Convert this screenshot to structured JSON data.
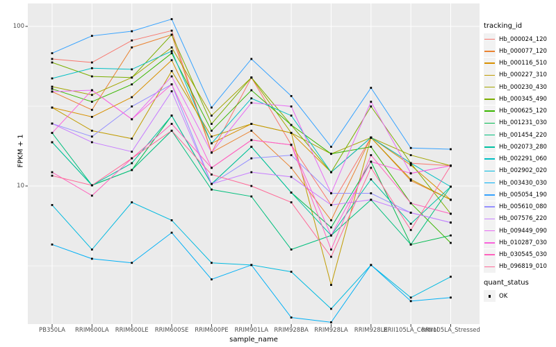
{
  "figure": {
    "background": "#ffffff",
    "panel_background": "#ebebeb",
    "gridline_color": "#ffffff",
    "tick_color": "#333333",
    "axis_text_color": "#4d4d4d"
  },
  "chart_data": {
    "type": "line",
    "title": "",
    "xlabel": "sample_name",
    "ylabel": "FPKM + 1",
    "y_scale": "log10",
    "y_ticks": [
      {
        "label": "100",
        "value": 100
      },
      {
        "label": "10",
        "value": 10
      }
    ],
    "y_minor_gridlines": [
      31.6,
      3.16
    ],
    "ylim": [
      1.36,
      140
    ],
    "grid": "on",
    "legend_position": "right",
    "point_marker": {
      "shape": "square",
      "color": "#000000",
      "size": 2.8
    },
    "categories": [
      "PB350LA",
      "RRIM600LA",
      "RRIM600LE",
      "RRIM600SE",
      "RRIM600PE",
      "RRIM901LA",
      "RRIM928BA",
      "RRIM928LA",
      "RRIM928LE",
      "RRII105LA_Control",
      "RRII105LA_Stressed"
    ],
    "series": [
      {
        "name": "Hb_000024_120",
        "color": "#F8766D",
        "values": [
          62.5,
          59.4,
          81.6,
          94,
          16.2,
          47.8,
          18.1,
          7.6,
          20.1,
          13.9,
          13.4
        ]
      },
      {
        "name": "Hb_000077_120",
        "color": "#EA8331",
        "values": [
          39,
          30,
          73.8,
          88.7,
          16.2,
          22.2,
          13,
          6.1,
          20.1,
          10.8,
          8.2
        ]
      },
      {
        "name": "Hb_000116_510",
        "color": "#D89000",
        "values": [
          31,
          27.1,
          36,
          61.4,
          18.5,
          24.5,
          21.5,
          12.2,
          20.1,
          13.5,
          8.2
        ]
      },
      {
        "name": "Hb_000227_310",
        "color": "#C09B00",
        "values": [
          31,
          22.2,
          19.8,
          52.5,
          20.4,
          24.5,
          21.5,
          2.4,
          20.1,
          11,
          8.2
        ]
      },
      {
        "name": "Hb_000230_430",
        "color": "#A3A500",
        "values": [
          41.9,
          37.2,
          47.8,
          73.8,
          27.6,
          47.8,
          21.5,
          15.9,
          20.1,
          15.6,
          13.4
        ]
      },
      {
        "name": "Hb_000345_490",
        "color": "#7CAE00",
        "values": [
          59.4,
          48.6,
          47.8,
          88.7,
          24.5,
          47.8,
          24.1,
          12.2,
          31.5,
          13.9,
          6.7
        ]
      },
      {
        "name": "Hb_000625_120",
        "color": "#39B600",
        "values": [
          40.6,
          33.7,
          43.3,
          67.9,
          22.2,
          39.8,
          24.1,
          15.9,
          17.6,
          7.8,
          4.4
        ]
      },
      {
        "name": "Hb_001231_030",
        "color": "#00BB4E",
        "values": [
          18.8,
          10.1,
          12.6,
          27.6,
          10.3,
          17.6,
          9.1,
          5.5,
          14.2,
          4.3,
          4.9
        ]
      },
      {
        "name": "Hb_001454_220",
        "color": "#00BF7D",
        "values": [
          21.5,
          10.1,
          12.6,
          22.2,
          9.5,
          8.6,
          4,
          4.9,
          8.2,
          4.3,
          9.9
        ]
      },
      {
        "name": "Hb_002073_280",
        "color": "#00C1A3",
        "values": [
          18.8,
          10.1,
          13.9,
          27.6,
          10.3,
          17.6,
          9.1,
          4.9,
          11,
          5.8,
          9.9
        ]
      },
      {
        "name": "Hb_002291_060",
        "color": "#00BFC4",
        "values": [
          47.2,
          54.7,
          53.8,
          70,
          18.5,
          35.4,
          27.6,
          12.2,
          20.1,
          13.9,
          9.9
        ]
      },
      {
        "name": "Hb_002902_020",
        "color": "#00BAE0",
        "values": [
          7.6,
          4,
          7.9,
          6.1,
          3.3,
          3.2,
          2.9,
          1.7,
          3.2,
          2,
          2.7
        ]
      },
      {
        "name": "Hb_003430_030",
        "color": "#00B0F6",
        "values": [
          4.3,
          3.5,
          3.3,
          5.1,
          2.6,
          3.2,
          1.5,
          1.4,
          3.2,
          1.9,
          2
        ]
      },
      {
        "name": "Hb_005054_190",
        "color": "#35A2FF",
        "values": [
          67.9,
          87.2,
          93.2,
          111,
          31,
          62.5,
          36.6,
          17.6,
          41.2,
          17.3,
          17
        ]
      },
      {
        "name": "Hb_005610_080",
        "color": "#9590FF",
        "values": [
          24.6,
          20.4,
          31.5,
          43.3,
          10.3,
          14.9,
          15.6,
          9,
          9,
          6.8,
          5.9
        ]
      },
      {
        "name": "Hb_007576_220",
        "color": "#C77CFF",
        "values": [
          24.6,
          18.8,
          16.4,
          39.2,
          10.3,
          12.2,
          11.4,
          7.6,
          8.2,
          6.8,
          5.9
        ]
      },
      {
        "name": "Hb_009449_090",
        "color": "#E76BF3",
        "values": [
          39,
          39.8,
          26.2,
          48.6,
          16.2,
          33.2,
          31.5,
          9,
          33.7,
          12,
          13.4
        ]
      },
      {
        "name": "Hb_010287_030",
        "color": "#FA62DB",
        "values": [
          21.5,
          39.8,
          26.2,
          43.3,
          13,
          19.4,
          18.1,
          4.9,
          14.2,
          12,
          13.4
        ]
      },
      {
        "name": "Hb_030545_030",
        "color": "#FF62BC",
        "values": [
          12.2,
          8.7,
          14.9,
          24.5,
          13,
          19.4,
          18.1,
          4,
          15.6,
          7.8,
          6.7
        ]
      },
      {
        "name": "Hb_096819_010",
        "color": "#FF6A98",
        "values": [
          11.6,
          10.1,
          14.9,
          22.2,
          11.8,
          10,
          7.9,
          3.6,
          13,
          5.3,
          13.4
        ]
      }
    ]
  },
  "legend": {
    "tracking_title": "tracking_id",
    "quant_title": "quant_status",
    "quant_items": [
      {
        "label": "OK",
        "marker": "black-square"
      }
    ]
  }
}
